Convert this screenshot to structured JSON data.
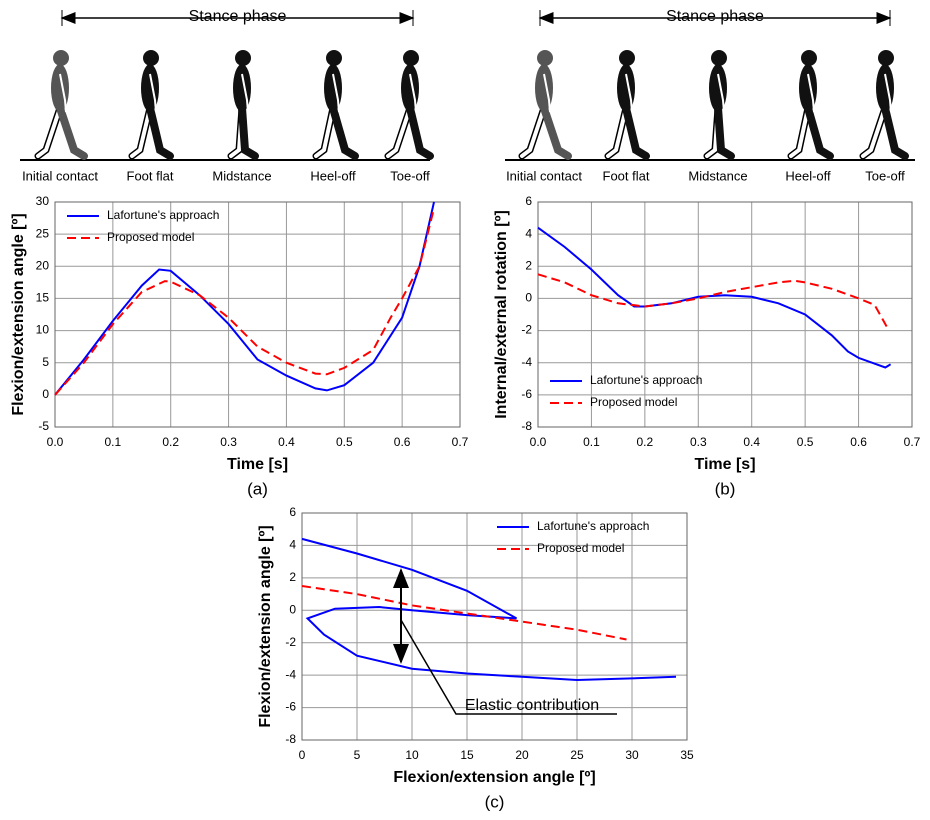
{
  "chart_data": [
    {
      "type": "line",
      "panel_label": "(a)",
      "illustration": {
        "title": "Stance phase",
        "phases": [
          "Initial contact",
          "Foot flat",
          "Midstance",
          "Heel-off",
          "Toe-off"
        ]
      },
      "xlabel": "Time [s]",
      "ylabel": "Flexion/extension angle [º]",
      "xlim": [
        0,
        0.7
      ],
      "xticks": [
        {
          "value": 0,
          "label": "0.0"
        },
        0.1,
        0.2,
        0.3,
        0.4,
        0.5,
        0.6,
        0.7
      ],
      "ylim": [
        -5,
        30
      ],
      "yticks": [
        -5,
        0,
        5,
        10,
        15,
        20,
        25,
        30
      ],
      "grid": true,
      "legend": "upper left",
      "series": [
        {
          "name": "Lafortune's approach",
          "color": "#0000ff",
          "linestyle": "solid",
          "x": [
            0,
            0.05,
            0.1,
            0.15,
            0.18,
            0.2,
            0.25,
            0.3,
            0.35,
            0.4,
            0.45,
            0.47,
            0.5,
            0.55,
            0.6,
            0.63,
            0.655
          ],
          "values": [
            0,
            5.5,
            11.5,
            17,
            19.5,
            19.3,
            15.5,
            11,
            5.5,
            3,
            1,
            0.7,
            1.5,
            5,
            12,
            20,
            30
          ]
        },
        {
          "name": "Proposed model",
          "color": "#ff0000",
          "linestyle": "dashed",
          "x": [
            0,
            0.05,
            0.1,
            0.15,
            0.19,
            0.2,
            0.25,
            0.3,
            0.35,
            0.4,
            0.45,
            0.47,
            0.5,
            0.55,
            0.58,
            0.6,
            0.63,
            0.655
          ],
          "values": [
            0,
            5,
            11,
            16,
            17.7,
            17.6,
            15.5,
            12,
            7.5,
            5,
            3.3,
            3.2,
            4.2,
            7,
            12,
            15,
            20,
            29
          ]
        }
      ]
    },
    {
      "type": "line",
      "panel_label": "(b)",
      "illustration": {
        "title": "Stance phase",
        "phases": [
          "Initial contact",
          "Foot flat",
          "Midstance",
          "Heel-off",
          "Toe-off"
        ]
      },
      "xlabel": "Time [s]",
      "ylabel": "Internal/external rotation [º]",
      "xlim": [
        0,
        0.7
      ],
      "xticks": [
        {
          "value": 0,
          "label": "0.0"
        },
        0.1,
        0.2,
        0.3,
        0.4,
        0.5,
        0.6,
        0.7
      ],
      "ylim": [
        -8,
        6
      ],
      "yticks": [
        -8,
        -6,
        -4,
        -2,
        0,
        2,
        4,
        6
      ],
      "grid": true,
      "legend": "lower left",
      "series": [
        {
          "name": "Lafortune's approach",
          "color": "#0000ff",
          "linestyle": "solid",
          "x": [
            0,
            0.05,
            0.1,
            0.15,
            0.18,
            0.2,
            0.25,
            0.3,
            0.35,
            0.4,
            0.45,
            0.5,
            0.55,
            0.58,
            0.6,
            0.65,
            0.66
          ],
          "values": [
            4.4,
            3.2,
            1.8,
            0.2,
            -0.5,
            -0.5,
            -0.3,
            0.1,
            0.2,
            0.1,
            -0.3,
            -1,
            -2.3,
            -3.3,
            -3.7,
            -4.3,
            -4.1
          ]
        },
        {
          "name": "Proposed model",
          "color": "#ff0000",
          "linestyle": "dashed",
          "x": [
            0,
            0.05,
            0.1,
            0.15,
            0.2,
            0.25,
            0.3,
            0.35,
            0.4,
            0.45,
            0.48,
            0.5,
            0.55,
            0.6,
            0.63,
            0.65,
            0.655
          ],
          "values": [
            1.5,
            1,
            0.2,
            -0.3,
            -0.5,
            -0.3,
            0,
            0.4,
            0.7,
            1,
            1.1,
            1,
            0.6,
            0,
            -0.4,
            -1.6,
            -1.9
          ]
        }
      ]
    },
    {
      "type": "line",
      "panel_label": "(c)",
      "annotation": "Elastic contribution",
      "xlabel": "Flexion/extension angle [º]",
      "ylabel": "Flexion/extension angle [º]",
      "xlim": [
        0,
        35
      ],
      "xticks": [
        0,
        5,
        10,
        15,
        20,
        25,
        30,
        35
      ],
      "ylim": [
        -8,
        6
      ],
      "yticks": [
        -8,
        -6,
        -4,
        -2,
        0,
        2,
        4,
        6
      ],
      "grid": true,
      "legend": "upper right",
      "series": [
        {
          "name": "Lafortune's approach",
          "color": "#0000ff",
          "linestyle": "solid",
          "x": [
            0,
            5,
            10,
            15,
            19.5,
            15,
            10,
            7,
            3,
            0.5,
            2,
            5,
            10,
            15,
            20,
            25,
            30,
            34
          ],
          "values": [
            4.4,
            3.5,
            2.5,
            1.2,
            -0.5,
            -0.3,
            0,
            0.2,
            0.1,
            -0.5,
            -1.5,
            -2.8,
            -3.6,
            -3.9,
            -4.1,
            -4.3,
            -4.2,
            -4.1
          ]
        },
        {
          "name": "Proposed model",
          "color": "#ff0000",
          "linestyle": "dashed",
          "x": [
            0,
            5,
            10,
            15,
            20,
            25,
            29.5
          ],
          "values": [
            1.5,
            1,
            0.3,
            -0.2,
            -0.7,
            -1.2,
            -1.8
          ]
        }
      ]
    }
  ]
}
